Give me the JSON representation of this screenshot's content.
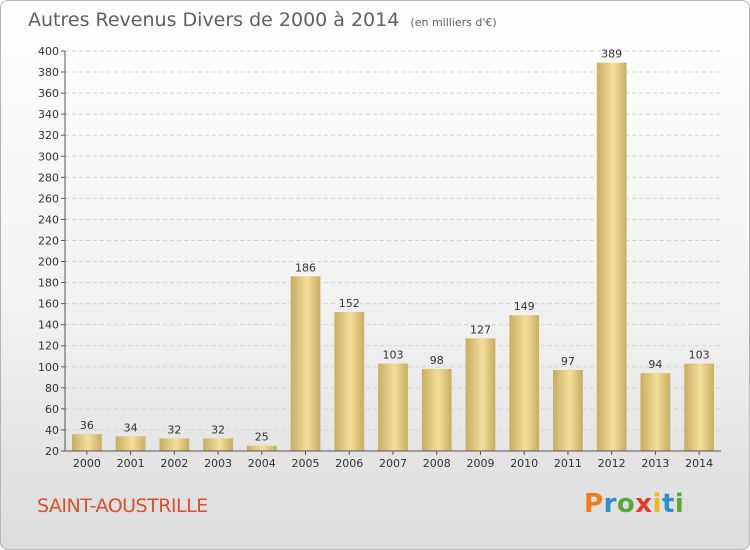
{
  "chart_data": {
    "type": "bar",
    "title": "Autres Revenus Divers de 2000 à 2014",
    "subtitle": "(en milliers d'€)",
    "categories": [
      "2000",
      "2001",
      "2002",
      "2003",
      "2004",
      "2005",
      "2006",
      "2007",
      "2008",
      "2009",
      "2010",
      "2011",
      "2012",
      "2013",
      "2014"
    ],
    "values": [
      36,
      34,
      32,
      32,
      25,
      186,
      152,
      103,
      98,
      127,
      149,
      97,
      389,
      94,
      103
    ],
    "ylim": [
      20,
      400
    ],
    "yticks": [
      20,
      40,
      60,
      80,
      100,
      120,
      140,
      160,
      180,
      200,
      220,
      240,
      260,
      280,
      300,
      320,
      340,
      360,
      380,
      400
    ],
    "grid": true,
    "bar_color_light": "#f3de9a",
    "bar_color_dark": "#c8ad62"
  },
  "footer": {
    "commune": "SAINT-AOUSTRILLE",
    "commune_color": "#d9502a",
    "logo_letters": [
      {
        "char": "P",
        "color": "#f07d1a"
      },
      {
        "char": "r",
        "color": "#2f8fcc"
      },
      {
        "char": "o",
        "color": "#5aa83a"
      },
      {
        "char": "x",
        "color": "#e23b2e"
      },
      {
        "char": "i",
        "color": "#f0b418"
      },
      {
        "char": "t",
        "color": "#2f8fcc"
      },
      {
        "char": "i",
        "color": "#5aa83a"
      }
    ]
  }
}
